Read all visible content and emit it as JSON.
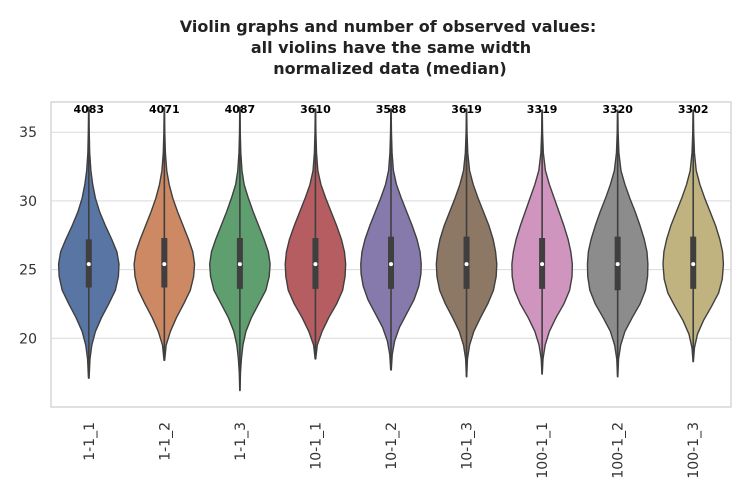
{
  "chart_data": {
    "type": "violin",
    "title_lines": [
      "Violin graphs and number of observed values:",
      "all violins have the same width",
      "normalized data (median)"
    ],
    "categories": [
      "1-1_1",
      "1-1_2",
      "1-1_3",
      "10-1_1",
      "10-1_2",
      "10-1_3",
      "100-1_1",
      "100-1_2",
      "100-1_3"
    ],
    "counts": [
      "4083",
      "4071",
      "4087",
      "3610",
      "3588",
      "3619",
      "3319",
      "3320",
      "3302"
    ],
    "colors": [
      "#5875a4",
      "#cc8963",
      "#5f9e6e",
      "#b55d60",
      "#857aab",
      "#8d7866",
      "#d095bf",
      "#8c8c8c",
      "#c1b37f"
    ],
    "ylim": [
      15,
      37.2
    ],
    "yticks": [
      20,
      25,
      30,
      35
    ],
    "grid": true,
    "series": [
      {
        "name": "1-1_1",
        "min": 17.1,
        "q1": 23.7,
        "median": 25.4,
        "q3": 27.2,
        "max": 36.8,
        "density": [
          [
            17.1,
            0.01
          ],
          [
            18.5,
            0.04
          ],
          [
            19.5,
            0.1
          ],
          [
            20.5,
            0.22
          ],
          [
            21.5,
            0.42
          ],
          [
            22.5,
            0.66
          ],
          [
            23.5,
            0.88
          ],
          [
            24.5,
            0.98
          ],
          [
            25.4,
            1.0
          ],
          [
            26.3,
            0.93
          ],
          [
            27.2,
            0.76
          ],
          [
            28.2,
            0.55
          ],
          [
            29.2,
            0.36
          ],
          [
            30.2,
            0.22
          ],
          [
            31.2,
            0.13
          ],
          [
            32.2,
            0.07
          ],
          [
            33.5,
            0.03
          ],
          [
            35,
            0.015
          ],
          [
            36.8,
            0.005
          ]
        ]
      },
      {
        "name": "1-1_2",
        "min": 18.4,
        "q1": 23.7,
        "median": 25.4,
        "q3": 27.3,
        "max": 36.8,
        "density": [
          [
            18.4,
            0.01
          ],
          [
            19.5,
            0.06
          ],
          [
            20.5,
            0.2
          ],
          [
            21.5,
            0.4
          ],
          [
            22.5,
            0.64
          ],
          [
            23.5,
            0.86
          ],
          [
            24.5,
            0.97
          ],
          [
            25.4,
            1.0
          ],
          [
            26.3,
            0.94
          ],
          [
            27.2,
            0.8
          ],
          [
            28.2,
            0.62
          ],
          [
            29.2,
            0.44
          ],
          [
            30.2,
            0.28
          ],
          [
            31.2,
            0.16
          ],
          [
            32.2,
            0.08
          ],
          [
            33.5,
            0.035
          ],
          [
            35,
            0.015
          ],
          [
            36.8,
            0.005
          ]
        ]
      },
      {
        "name": "1-1_3",
        "min": 16.2,
        "q1": 23.6,
        "median": 25.4,
        "q3": 27.3,
        "max": 36.8,
        "density": [
          [
            16.2,
            0.005
          ],
          [
            17.5,
            0.02
          ],
          [
            18.5,
            0.05
          ],
          [
            19.5,
            0.1
          ],
          [
            20.5,
            0.2
          ],
          [
            21.5,
            0.38
          ],
          [
            22.5,
            0.62
          ],
          [
            23.5,
            0.86
          ],
          [
            24.5,
            0.97
          ],
          [
            25.4,
            1.0
          ],
          [
            26.3,
            0.94
          ],
          [
            27.2,
            0.8
          ],
          [
            28.2,
            0.62
          ],
          [
            29.2,
            0.44
          ],
          [
            30.2,
            0.28
          ],
          [
            31.2,
            0.14
          ],
          [
            32.2,
            0.07
          ],
          [
            33.5,
            0.03
          ],
          [
            35,
            0.012
          ],
          [
            36.8,
            0.005
          ]
        ]
      },
      {
        "name": "10-1_1",
        "min": 18.5,
        "q1": 23.6,
        "median": 25.4,
        "q3": 27.3,
        "max": 36.7,
        "density": [
          [
            18.5,
            0.01
          ],
          [
            19.5,
            0.06
          ],
          [
            20.5,
            0.22
          ],
          [
            21.5,
            0.44
          ],
          [
            22.5,
            0.7
          ],
          [
            23.5,
            0.9
          ],
          [
            24.5,
            0.98
          ],
          [
            25.4,
            1.0
          ],
          [
            26.3,
            0.96
          ],
          [
            27.2,
            0.86
          ],
          [
            28.2,
            0.7
          ],
          [
            29.2,
            0.52
          ],
          [
            30.2,
            0.34
          ],
          [
            31.2,
            0.18
          ],
          [
            32.2,
            0.08
          ],
          [
            33.5,
            0.035
          ],
          [
            35,
            0.015
          ],
          [
            36.7,
            0.005
          ]
        ]
      },
      {
        "name": "10-1_2",
        "min": 17.7,
        "q1": 23.6,
        "median": 25.4,
        "q3": 27.4,
        "max": 36.7,
        "density": [
          [
            17.7,
            0.01
          ],
          [
            18.8,
            0.04
          ],
          [
            19.8,
            0.12
          ],
          [
            20.8,
            0.28
          ],
          [
            21.8,
            0.52
          ],
          [
            22.8,
            0.76
          ],
          [
            23.8,
            0.92
          ],
          [
            24.7,
            0.99
          ],
          [
            25.4,
            1.0
          ],
          [
            26.3,
            0.96
          ],
          [
            27.2,
            0.86
          ],
          [
            28.2,
            0.7
          ],
          [
            29.2,
            0.52
          ],
          [
            30.2,
            0.34
          ],
          [
            31.2,
            0.18
          ],
          [
            32.2,
            0.08
          ],
          [
            33.5,
            0.035
          ],
          [
            35,
            0.015
          ],
          [
            36.7,
            0.005
          ]
        ]
      },
      {
        "name": "10-1_3",
        "min": 17.2,
        "q1": 23.6,
        "median": 25.4,
        "q3": 27.4,
        "max": 36.7,
        "density": [
          [
            17.2,
            0.005
          ],
          [
            18.5,
            0.03
          ],
          [
            19.5,
            0.1
          ],
          [
            20.5,
            0.24
          ],
          [
            21.5,
            0.46
          ],
          [
            22.5,
            0.7
          ],
          [
            23.5,
            0.89
          ],
          [
            24.5,
            0.98
          ],
          [
            25.4,
            1.0
          ],
          [
            26.3,
            0.96
          ],
          [
            27.2,
            0.88
          ],
          [
            28.2,
            0.74
          ],
          [
            29.2,
            0.56
          ],
          [
            30.2,
            0.38
          ],
          [
            31.2,
            0.22
          ],
          [
            32.2,
            0.1
          ],
          [
            33.5,
            0.04
          ],
          [
            35,
            0.015
          ],
          [
            36.7,
            0.005
          ]
        ]
      },
      {
        "name": "100-1_1",
        "min": 17.4,
        "q1": 23.6,
        "median": 25.4,
        "q3": 27.3,
        "max": 36.6,
        "density": [
          [
            17.4,
            0.005
          ],
          [
            18.5,
            0.03
          ],
          [
            19.5,
            0.1
          ],
          [
            20.5,
            0.24
          ],
          [
            21.5,
            0.46
          ],
          [
            22.5,
            0.72
          ],
          [
            23.5,
            0.91
          ],
          [
            24.5,
            0.99
          ],
          [
            25.4,
            1.0
          ],
          [
            26.3,
            0.95
          ],
          [
            27.2,
            0.86
          ],
          [
            28.2,
            0.72
          ],
          [
            29.2,
            0.56
          ],
          [
            30.2,
            0.4
          ],
          [
            31.2,
            0.24
          ],
          [
            32.2,
            0.11
          ],
          [
            33.5,
            0.04
          ],
          [
            35,
            0.015
          ],
          [
            36.6,
            0.005
          ]
        ]
      },
      {
        "name": "100-1_2",
        "min": 17.2,
        "q1": 23.5,
        "median": 25.4,
        "q3": 27.4,
        "max": 36.6,
        "density": [
          [
            17.2,
            0.005
          ],
          [
            18.5,
            0.03
          ],
          [
            19.5,
            0.1
          ],
          [
            20.5,
            0.24
          ],
          [
            21.5,
            0.48
          ],
          [
            22.5,
            0.74
          ],
          [
            23.5,
            0.92
          ],
          [
            24.5,
            0.99
          ],
          [
            25.4,
            1.0
          ],
          [
            26.3,
            0.97
          ],
          [
            27.2,
            0.88
          ],
          [
            28.2,
            0.74
          ],
          [
            29.2,
            0.58
          ],
          [
            30.2,
            0.4
          ],
          [
            31.2,
            0.24
          ],
          [
            32.2,
            0.11
          ],
          [
            33.5,
            0.04
          ],
          [
            35,
            0.015
          ],
          [
            36.6,
            0.005
          ]
        ]
      },
      {
        "name": "100-1_3",
        "min": 18.3,
        "q1": 23.6,
        "median": 25.4,
        "q3": 27.4,
        "max": 36.6,
        "density": [
          [
            18.3,
            0.005
          ],
          [
            19.3,
            0.04
          ],
          [
            20.3,
            0.14
          ],
          [
            21.3,
            0.34
          ],
          [
            22.3,
            0.6
          ],
          [
            23.3,
            0.84
          ],
          [
            24.3,
            0.96
          ],
          [
            25.4,
            1.0
          ],
          [
            26.3,
            0.97
          ],
          [
            27.2,
            0.88
          ],
          [
            28.2,
            0.74
          ],
          [
            29.2,
            0.56
          ],
          [
            30.2,
            0.38
          ],
          [
            31.2,
            0.22
          ],
          [
            32.2,
            0.1
          ],
          [
            33.5,
            0.04
          ],
          [
            35,
            0.015
          ],
          [
            36.6,
            0.005
          ]
        ]
      }
    ]
  }
}
